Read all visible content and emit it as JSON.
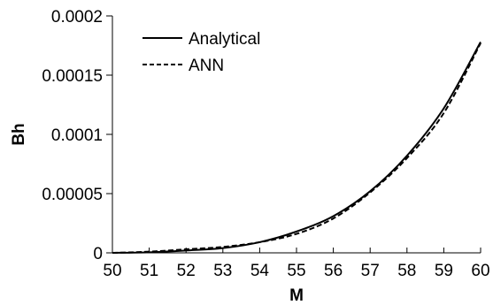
{
  "chart_data": {
    "type": "line",
    "title": "",
    "xlabel": "M",
    "ylabel": "Bh",
    "xlim": [
      50,
      60
    ],
    "ylim": [
      0,
      0.0002
    ],
    "x_ticks": [
      50,
      51,
      52,
      53,
      54,
      55,
      56,
      57,
      58,
      59,
      60
    ],
    "x_tick_labels": [
      "50",
      "51",
      "52",
      "53",
      "54",
      "55",
      "56",
      "57",
      "58",
      "59",
      "60"
    ],
    "y_ticks": [
      0,
      5e-05,
      0.0001,
      0.00015,
      0.0002
    ],
    "y_tick_labels": [
      "0",
      "0.00005",
      "0.0001",
      "0.00015",
      "0.0002"
    ],
    "grid": false,
    "legend_position": "top-left",
    "series": [
      {
        "name": "Analytical",
        "style": "solid",
        "color": "#000000",
        "x": [
          50,
          51,
          52,
          53,
          54,
          55,
          56,
          57,
          58,
          59,
          60
        ],
        "y": [
          0,
          5e-07,
          2e-06,
          4e-06,
          9e-06,
          1.8e-05,
          3.1e-05,
          5.2e-05,
          8.2e-05,
          0.000122,
          0.000178
        ]
      },
      {
        "name": "ANN",
        "style": "dashed",
        "color": "#000000",
        "x": [
          50,
          51,
          52,
          53,
          54,
          55,
          56,
          57,
          58,
          59,
          60
        ],
        "y": [
          0,
          1e-06,
          3e-06,
          5e-06,
          9e-06,
          1.6e-05,
          2.9e-05,
          5.1e-05,
          8e-05,
          0.000118,
          0.000177
        ]
      }
    ]
  }
}
